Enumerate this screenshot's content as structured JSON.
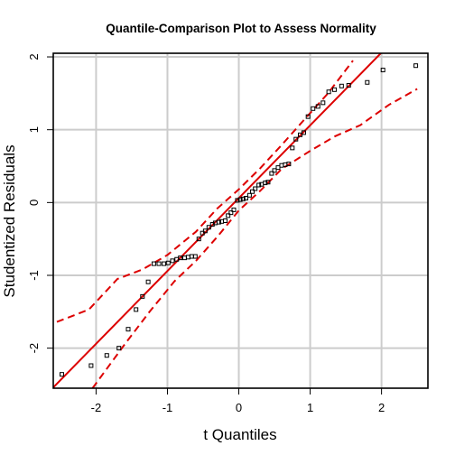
{
  "chart_data": {
    "type": "scatter",
    "title": "Quantile-Comparison Plot to Assess Normality",
    "xlabel": "t Quantiles",
    "ylabel": "Studentized Residuals",
    "xlim": [
      -2.6,
      2.65
    ],
    "ylim": [
      -2.55,
      2.05
    ],
    "x_ticks": [
      -2,
      -1,
      0,
      1,
      2
    ],
    "y_ticks": [
      -2,
      -1,
      0,
      1,
      2
    ],
    "x_tick_labels": [
      "-2",
      "-1",
      "0",
      "1",
      "2"
    ],
    "y_tick_labels": [
      "-2",
      "-1",
      "0",
      "1",
      "2"
    ],
    "grid": true,
    "colors": {
      "points": "#000000",
      "reference_line": "#dd0000",
      "envelope": "#dd0000",
      "grid": "#cccccc"
    },
    "points": [
      {
        "x": -2.48,
        "y": -2.36
      },
      {
        "x": -2.07,
        "y": -2.24
      },
      {
        "x": -1.85,
        "y": -2.1
      },
      {
        "x": -1.68,
        "y": -2.0
      },
      {
        "x": -1.55,
        "y": -1.74
      },
      {
        "x": -1.44,
        "y": -1.47
      },
      {
        "x": -1.35,
        "y": -1.29
      },
      {
        "x": -1.27,
        "y": -1.09
      },
      {
        "x": -1.19,
        "y": -0.84
      },
      {
        "x": -1.12,
        "y": -0.84
      },
      {
        "x": -1.05,
        "y": -0.84
      },
      {
        "x": -0.99,
        "y": -0.83
      },
      {
        "x": -0.93,
        "y": -0.8
      },
      {
        "x": -0.87,
        "y": -0.78
      },
      {
        "x": -0.82,
        "y": -0.76
      },
      {
        "x": -0.76,
        "y": -0.76
      },
      {
        "x": -0.71,
        "y": -0.75
      },
      {
        "x": -0.66,
        "y": -0.74
      },
      {
        "x": -0.61,
        "y": -0.74
      },
      {
        "x": -0.56,
        "y": -0.5
      },
      {
        "x": -0.51,
        "y": -0.42
      },
      {
        "x": -0.47,
        "y": -0.39
      },
      {
        "x": -0.42,
        "y": -0.34
      },
      {
        "x": -0.37,
        "y": -0.3
      },
      {
        "x": -0.33,
        "y": -0.28
      },
      {
        "x": -0.28,
        "y": -0.27
      },
      {
        "x": -0.24,
        "y": -0.26
      },
      {
        "x": -0.19,
        "y": -0.25
      },
      {
        "x": -0.15,
        "y": -0.18
      },
      {
        "x": -0.11,
        "y": -0.14
      },
      {
        "x": -0.07,
        "y": -0.1
      },
      {
        "x": -0.02,
        "y": 0.03
      },
      {
        "x": 0.02,
        "y": 0.04
      },
      {
        "x": 0.06,
        "y": 0.05
      },
      {
        "x": 0.1,
        "y": 0.06
      },
      {
        "x": 0.15,
        "y": 0.1
      },
      {
        "x": 0.19,
        "y": 0.15
      },
      {
        "x": 0.23,
        "y": 0.19
      },
      {
        "x": 0.28,
        "y": 0.24
      },
      {
        "x": 0.32,
        "y": 0.25
      },
      {
        "x": 0.37,
        "y": 0.27
      },
      {
        "x": 0.41,
        "y": 0.28
      },
      {
        "x": 0.46,
        "y": 0.4
      },
      {
        "x": 0.5,
        "y": 0.44
      },
      {
        "x": 0.55,
        "y": 0.48
      },
      {
        "x": 0.6,
        "y": 0.51
      },
      {
        "x": 0.65,
        "y": 0.52
      },
      {
        "x": 0.7,
        "y": 0.53
      },
      {
        "x": 0.75,
        "y": 0.75
      },
      {
        "x": 0.8,
        "y": 0.87
      },
      {
        "x": 0.86,
        "y": 0.93
      },
      {
        "x": 0.91,
        "y": 0.96
      },
      {
        "x": 0.97,
        "y": 1.18
      },
      {
        "x": 1.04,
        "y": 1.29
      },
      {
        "x": 1.11,
        "y": 1.32
      },
      {
        "x": 1.18,
        "y": 1.37
      },
      {
        "x": 1.26,
        "y": 1.52
      },
      {
        "x": 1.34,
        "y": 1.55
      },
      {
        "x": 1.44,
        "y": 1.6
      },
      {
        "x": 1.54,
        "y": 1.61
      },
      {
        "x": 1.8,
        "y": 1.65
      },
      {
        "x": 2.02,
        "y": 1.82
      },
      {
        "x": 2.48,
        "y": 1.88
      }
    ],
    "reference_line": {
      "intercept": 0.06,
      "slope": 1.0
    },
    "envelope_upper": [
      {
        "x": -2.55,
        "y": -1.64
      },
      {
        "x": -2.1,
        "y": -1.47
      },
      {
        "x": -1.7,
        "y": -1.05
      },
      {
        "x": -1.35,
        "y": -0.92
      },
      {
        "x": -1.0,
        "y": -0.72
      },
      {
        "x": -0.6,
        "y": -0.4
      },
      {
        "x": -0.3,
        "y": -0.08
      },
      {
        "x": 0.0,
        "y": 0.18
      },
      {
        "x": 0.3,
        "y": 0.47
      },
      {
        "x": 0.6,
        "y": 0.79
      },
      {
        "x": 0.9,
        "y": 1.12
      },
      {
        "x": 1.25,
        "y": 1.5
      },
      {
        "x": 1.6,
        "y": 1.95
      }
    ],
    "envelope_lower": [
      {
        "x": -2.05,
        "y": -2.55
      },
      {
        "x": -1.6,
        "y": -1.95
      },
      {
        "x": -1.25,
        "y": -1.5
      },
      {
        "x": -0.9,
        "y": -1.08
      },
      {
        "x": -0.6,
        "y": -0.8
      },
      {
        "x": -0.3,
        "y": -0.47
      },
      {
        "x": 0.0,
        "y": -0.11
      },
      {
        "x": 0.3,
        "y": 0.16
      },
      {
        "x": 0.6,
        "y": 0.46
      },
      {
        "x": 1.0,
        "y": 0.71
      },
      {
        "x": 1.35,
        "y": 0.91
      },
      {
        "x": 1.7,
        "y": 1.06
      },
      {
        "x": 2.1,
        "y": 1.34
      },
      {
        "x": 2.5,
        "y": 1.56
      }
    ]
  }
}
